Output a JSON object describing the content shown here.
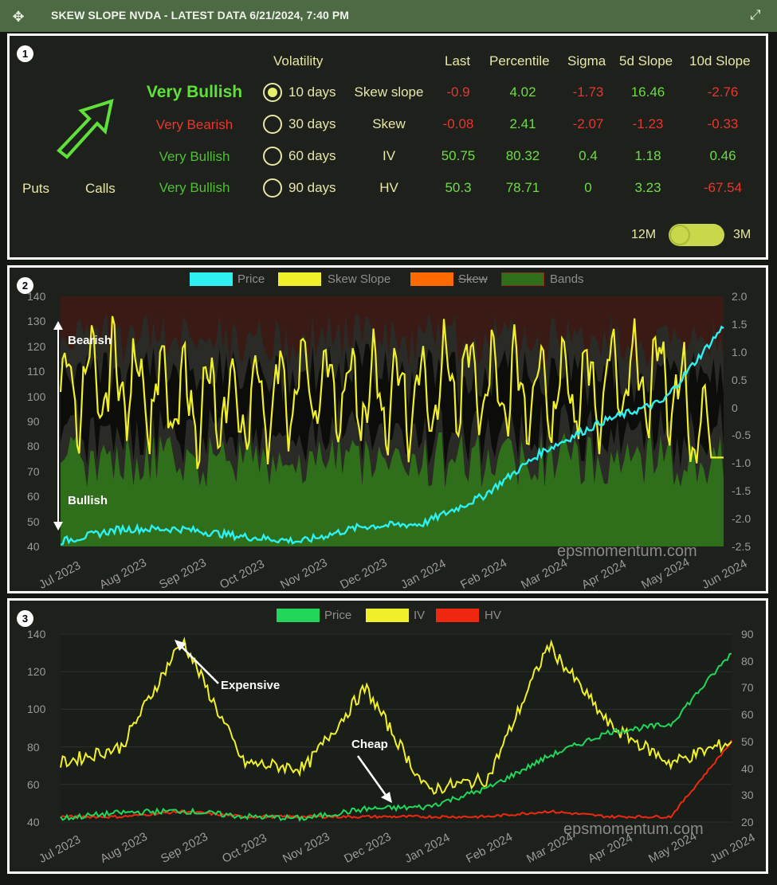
{
  "window": {
    "title": "SKEW SLOPE NVDA - LATEST DATA 6/21/2024, 7:40 PM",
    "move_icon": "move-icon",
    "expand_icon": "expand-icon"
  },
  "panel1": {
    "badge": "1",
    "headers": {
      "volatility": "Volatility",
      "last": "Last",
      "percentile": "Percentile",
      "sigma": "Sigma",
      "slope5": "5d Slope",
      "slope10": "10d Slope"
    },
    "sentiment": [
      "Very Bullish",
      "Very Bearish",
      "Very Bullish",
      "Very Bullish"
    ],
    "periods": [
      "10 days",
      "30 days",
      "60 days",
      "90 days"
    ],
    "selected_period": "10 days",
    "metrics": [
      {
        "name": "Skew slope",
        "last": "-0.9",
        "percentile": "4.02",
        "sigma": "-1.73",
        "slope5": "16.46",
        "slope10": "-2.76"
      },
      {
        "name": "Skew",
        "last": "-0.08",
        "percentile": "2.41",
        "sigma": "-2.07",
        "slope5": "-1.23",
        "slope10": "-0.33"
      },
      {
        "name": "IV",
        "last": "50.75",
        "percentile": "80.32",
        "sigma": "0.4",
        "slope5": "1.18",
        "slope10": "0.46"
      },
      {
        "name": "HV",
        "last": "50.3",
        "percentile": "78.71",
        "sigma": "0",
        "slope5": "3.23",
        "slope10": "-67.54"
      }
    ],
    "puts_label": "Puts",
    "calls_label": "Calls",
    "toggle": {
      "left": "12M",
      "right": "3M"
    },
    "arrow_icon": "arrow-up-right-icon",
    "colors": {
      "bull": "#6fdc45",
      "bear": "#e8372e",
      "bright_bull": "#5fe03a"
    }
  },
  "panel2": {
    "badge": "2",
    "legend": [
      "Price",
      "Skew Slope",
      "Skew",
      "Bands"
    ],
    "legend_colors": [
      "#2ef0f0",
      "#f0f02a",
      "#ff6a00",
      "#2f6e1a"
    ],
    "y_left": [
      "140",
      "130",
      "120",
      "110",
      "100",
      "90",
      "80",
      "70",
      "60",
      "50",
      "40"
    ],
    "y_right": [
      "2.0",
      "1.5",
      "1.0",
      "0.5",
      "0",
      "-0.5",
      "-1.0",
      "-1.5",
      "-2.0",
      "-2.5"
    ],
    "x_labels": [
      "Jul 2023",
      "Aug 2023",
      "Sep 2023",
      "Oct 2023",
      "Nov 2023",
      "Dec 2023",
      "Jan 2024",
      "Feb 2024",
      "Mar 2024",
      "Apr 2024",
      "May 2024",
      "Jun 2024"
    ],
    "annot_bearish": "Bearish",
    "annot_bullish": "Bullish",
    "watermark": "epsmomentum.com"
  },
  "panel3": {
    "badge": "3",
    "legend": [
      "Price",
      "IV",
      "HV"
    ],
    "legend_colors": [
      "#22d65a",
      "#f0f02a",
      "#f02810"
    ],
    "y_left": [
      "140",
      "120",
      "100",
      "80",
      "60",
      "40"
    ],
    "y_right": [
      "90",
      "80",
      "70",
      "60",
      "50",
      "40",
      "30",
      "20"
    ],
    "x_labels": [
      "Jul 2023",
      "Aug 2023",
      "Sep 2023",
      "Oct 2023",
      "Nov 2023",
      "Dec 2023",
      "Jan 2024",
      "Feb 2024",
      "Mar 2024",
      "Apr 2024",
      "May 2024",
      "Jun 2024"
    ],
    "annot_expensive": "Expensive",
    "annot_cheap": "Cheap",
    "watermark": "epsmomentum.com"
  },
  "chart_data": [
    {
      "type": "line",
      "x": [
        "Jul 2023",
        "Aug 2023",
        "Sep 2023",
        "Oct 2023",
        "Nov 2023",
        "Dec 2023",
        "Jan 2024",
        "Feb 2024",
        "Mar 2024",
        "Apr 2024",
        "May 2024",
        "Jun 2024"
      ],
      "series": [
        {
          "name": "Price",
          "values": [
            42,
            47,
            47,
            44,
            42,
            48,
            49,
            60,
            78,
            90,
            98,
            128
          ]
        },
        {
          "name": "Skew Slope",
          "values": [
            0.3,
            0.5,
            0.1,
            0.0,
            0.4,
            0.2,
            0.3,
            0.5,
            0.2,
            0.4,
            0.6,
            -0.9
          ]
        }
      ],
      "ylim_left": [
        40,
        140
      ],
      "ylim_right": [
        -2.5,
        2.0
      ]
    },
    {
      "type": "line",
      "x": [
        "Jul 2023",
        "Aug 2023",
        "Sep 2023",
        "Oct 2023",
        "Nov 2023",
        "Dec 2023",
        "Jan 2024",
        "Feb 2024",
        "Mar 2024",
        "Apr 2024",
        "May 2024",
        "Jun 2024"
      ],
      "series": [
        {
          "name": "Price",
          "values": [
            42,
            45,
            46,
            43,
            42,
            47,
            48,
            58,
            75,
            88,
            92,
            130
          ]
        },
        {
          "name": "IV",
          "values": [
            42,
            48,
            88,
            42,
            40,
            70,
            32,
            36,
            86,
            56,
            42,
            50
          ]
        },
        {
          "name": "HV",
          "values": [
            22,
            22,
            24,
            22,
            22,
            22,
            22,
            22,
            24,
            22,
            22,
            50
          ]
        }
      ],
      "ylim_left": [
        40,
        140
      ],
      "ylim_right": [
        20,
        90
      ]
    }
  ]
}
